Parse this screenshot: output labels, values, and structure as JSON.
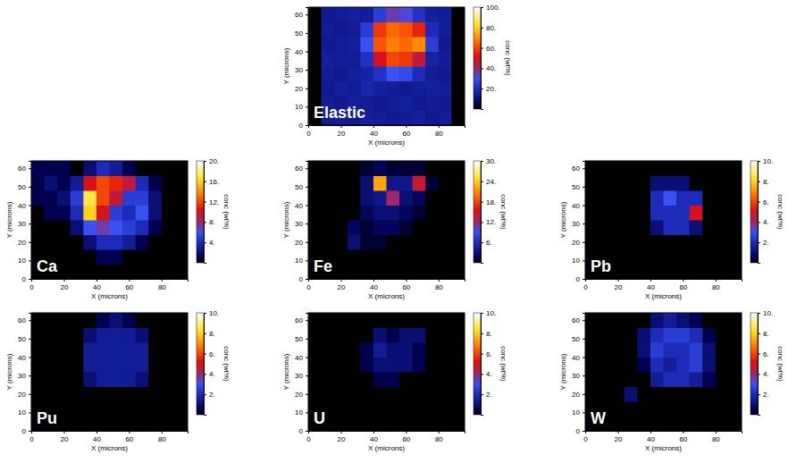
{
  "chart_data": [
    {
      "type": "heatmap",
      "title": "Elastic",
      "x_label": "X (microns)",
      "y_label": "Y (microns)",
      "x": [
        4,
        12,
        20,
        28,
        36,
        44,
        52,
        60,
        68,
        76,
        84,
        92
      ],
      "y": [
        4,
        12,
        20,
        28,
        36,
        44,
        52,
        60
      ],
      "z": [
        [
          0,
          14,
          15,
          14,
          16,
          15,
          14,
          15,
          16,
          14,
          15,
          0
        ],
        [
          0,
          15,
          14,
          16,
          15,
          14,
          15,
          16,
          14,
          15,
          14,
          0
        ],
        [
          0,
          14,
          16,
          15,
          18,
          16,
          15,
          14,
          15,
          16,
          15,
          0
        ],
        [
          0,
          15,
          14,
          16,
          17,
          22,
          30,
          28,
          20,
          15,
          14,
          0
        ],
        [
          0,
          16,
          15,
          15,
          22,
          50,
          60,
          58,
          45,
          17,
          15,
          0
        ],
        [
          0,
          14,
          15,
          16,
          30,
          62,
          68,
          65,
          70,
          25,
          14,
          0
        ],
        [
          0,
          15,
          14,
          15,
          25,
          58,
          65,
          62,
          55,
          20,
          15,
          0
        ],
        [
          0,
          14,
          15,
          16,
          15,
          25,
          35,
          32,
          22,
          16,
          15,
          0
        ]
      ],
      "xlim": [
        0,
        96
      ],
      "ylim": [
        0,
        64
      ],
      "xticks": [
        0,
        20,
        40,
        60,
        80
      ],
      "yticks": [
        0,
        10,
        20,
        30,
        40,
        50,
        60
      ],
      "colorbar": {
        "label": "conc (wt%)",
        "range": [
          0,
          100
        ],
        "ticks": [
          {
            "value": 20,
            "label": "20."
          },
          {
            "value": 40,
            "label": "40."
          },
          {
            "value": 60,
            "label": "60."
          },
          {
            "value": 80,
            "label": "80."
          },
          {
            "value": 100,
            "label": "100."
          }
        ]
      }
    },
    {
      "type": "heatmap",
      "title": "Ca",
      "x_label": "X (microns)",
      "y_label": "Y (microns)",
      "x": [
        4,
        12,
        20,
        28,
        36,
        44,
        52,
        60,
        68,
        76,
        84,
        92
      ],
      "y": [
        4,
        12,
        20,
        28,
        36,
        44,
        52,
        60
      ],
      "z": [
        [
          0,
          0,
          0,
          0,
          0,
          0,
          0,
          0,
          0,
          0,
          0,
          0
        ],
        [
          0,
          0,
          0,
          0,
          0,
          1,
          1,
          0,
          0,
          0,
          0,
          0
        ],
        [
          0,
          0,
          0,
          0,
          2,
          4,
          4,
          3,
          1,
          0,
          0,
          0
        ],
        [
          0,
          0,
          0,
          2,
          6,
          7,
          6,
          5,
          4,
          1,
          0,
          0
        ],
        [
          0,
          1,
          1,
          4,
          16,
          10,
          5,
          4,
          6,
          2,
          0,
          0
        ],
        [
          1,
          1,
          2,
          5,
          17,
          12,
          9,
          5,
          5,
          2,
          0,
          0
        ],
        [
          1,
          2,
          1,
          3,
          10,
          12,
          11,
          9,
          4,
          1,
          0,
          0
        ],
        [
          1,
          1,
          1,
          0,
          2,
          4,
          3,
          1,
          0,
          0,
          0,
          0
        ]
      ],
      "xlim": [
        0,
        96
      ],
      "ylim": [
        0,
        64
      ],
      "xticks": [
        0,
        20,
        40,
        60,
        80
      ],
      "yticks": [
        0,
        10,
        20,
        30,
        40,
        50,
        60
      ],
      "colorbar": {
        "label": "conc (wt%)",
        "range": [
          0,
          20
        ],
        "ticks": [
          {
            "value": 4,
            "label": "4."
          },
          {
            "value": 8,
            "label": "8."
          },
          {
            "value": 12,
            "label": "12."
          },
          {
            "value": 16,
            "label": "16."
          },
          {
            "value": 20,
            "label": "20."
          }
        ]
      }
    },
    {
      "type": "heatmap",
      "title": "Fe",
      "x_label": "X (microns)",
      "y_label": "Y (microns)",
      "x": [
        4,
        12,
        20,
        28,
        36,
        44,
        52,
        60,
        68,
        76,
        84,
        92
      ],
      "y": [
        4,
        12,
        20,
        28,
        36,
        44,
        52,
        60
      ],
      "z": [
        [
          0,
          0,
          0,
          0,
          0,
          0,
          0,
          0,
          0,
          0,
          0,
          0
        ],
        [
          0,
          0,
          0,
          0,
          0,
          0,
          0,
          0,
          0,
          0,
          0,
          0
        ],
        [
          0,
          0,
          0,
          3,
          1,
          1,
          0,
          0,
          0,
          0,
          0,
          0
        ],
        [
          0,
          0,
          0,
          2,
          1,
          2,
          2,
          1,
          0,
          0,
          0,
          0
        ],
        [
          0,
          0,
          0,
          0,
          2,
          3,
          3,
          2,
          1,
          0,
          0,
          0
        ],
        [
          0,
          0,
          0,
          0,
          3,
          4,
          12,
          3,
          2,
          0,
          0,
          0
        ],
        [
          0,
          0,
          0,
          0,
          3,
          22,
          4,
          4,
          14,
          1,
          0,
          0
        ],
        [
          0,
          0,
          0,
          0,
          1,
          2,
          1,
          1,
          1,
          0,
          0,
          0
        ]
      ],
      "xlim": [
        0,
        96
      ],
      "ylim": [
        0,
        64
      ],
      "xticks": [
        0,
        20,
        40,
        60,
        80
      ],
      "yticks": [
        0,
        10,
        20,
        30,
        40,
        50,
        60
      ],
      "colorbar": {
        "label": "conc (wt%)",
        "range": [
          0,
          30
        ],
        "ticks": [
          {
            "value": 6,
            "label": "6."
          },
          {
            "value": 12,
            "label": "12."
          },
          {
            "value": 18,
            "label": "18."
          },
          {
            "value": 24,
            "label": "24."
          },
          {
            "value": 30,
            "label": "30."
          }
        ]
      }
    },
    {
      "type": "heatmap",
      "title": "Pb",
      "x_label": "X (microns)",
      "y_label": "Y (microns)",
      "x": [
        4,
        12,
        20,
        28,
        36,
        44,
        52,
        60,
        68,
        76,
        84,
        92
      ],
      "y": [
        4,
        12,
        20,
        28,
        36,
        44,
        52,
        60
      ],
      "z": [
        [
          0,
          0,
          0,
          0,
          0,
          0,
          0,
          0,
          0,
          0,
          0,
          0
        ],
        [
          0,
          0,
          0,
          0,
          0,
          0,
          0,
          0,
          0,
          0,
          0,
          0
        ],
        [
          0,
          0,
          0,
          0,
          0,
          0,
          0,
          0,
          0,
          0,
          0,
          0
        ],
        [
          0,
          0,
          0,
          0,
          0,
          1,
          2,
          2,
          1,
          0,
          0,
          0
        ],
        [
          0,
          0,
          0,
          0,
          0,
          2,
          2,
          2,
          5,
          0,
          0,
          0
        ],
        [
          0,
          0,
          0,
          0,
          0,
          2,
          3,
          2,
          2,
          0,
          0,
          0
        ],
        [
          0,
          0,
          0,
          0,
          0,
          1,
          1,
          1,
          0,
          0,
          0,
          0
        ],
        [
          0,
          0,
          0,
          0,
          0,
          0,
          0,
          0,
          0,
          0,
          0,
          0
        ]
      ],
      "xlim": [
        0,
        96
      ],
      "ylim": [
        0,
        64
      ],
      "xticks": [
        0,
        20,
        40,
        60,
        80
      ],
      "yticks": [
        0,
        10,
        20,
        30,
        40,
        50,
        60
      ],
      "colorbar": {
        "label": "conc (wt%)",
        "range": [
          0,
          10
        ],
        "ticks": [
          {
            "value": 2,
            "label": "2."
          },
          {
            "value": 4,
            "label": "4."
          },
          {
            "value": 6,
            "label": "6."
          },
          {
            "value": 8,
            "label": "8."
          },
          {
            "value": 10,
            "label": "10."
          }
        ]
      }
    },
    {
      "type": "heatmap",
      "title": "Pu",
      "x_label": "X (microns)",
      "y_label": "Y (microns)",
      "x": [
        4,
        12,
        20,
        28,
        36,
        44,
        52,
        60,
        68,
        76,
        84,
        92
      ],
      "y": [
        4,
        12,
        20,
        28,
        36,
        44,
        52,
        60
      ],
      "z": [
        [
          0,
          0,
          0,
          0,
          0,
          0,
          0,
          0,
          0,
          0,
          0,
          0
        ],
        [
          0,
          0,
          0,
          0,
          0,
          0,
          0,
          0,
          0,
          0,
          0,
          0
        ],
        [
          0,
          0,
          0,
          0,
          0,
          0,
          0,
          0,
          0,
          0,
          0,
          0
        ],
        [
          0,
          0,
          0,
          0,
          1,
          1.5,
          1.5,
          1.5,
          1,
          0,
          0,
          0
        ],
        [
          0,
          0,
          0,
          0,
          1.5,
          1.5,
          1.5,
          1.5,
          1.5,
          0,
          0,
          0
        ],
        [
          0,
          0,
          0,
          0,
          1.5,
          1.5,
          1.5,
          1.5,
          1.5,
          0,
          0,
          0
        ],
        [
          0,
          0,
          0,
          0,
          1,
          1.5,
          1.5,
          1.5,
          1,
          0,
          0,
          0
        ],
        [
          0,
          0,
          0,
          0,
          0,
          0.5,
          1,
          0.5,
          0,
          0,
          0,
          0
        ]
      ],
      "xlim": [
        0,
        96
      ],
      "ylim": [
        0,
        64
      ],
      "xticks": [
        0,
        20,
        40,
        60,
        80
      ],
      "yticks": [
        0,
        10,
        20,
        30,
        40,
        50,
        60
      ],
      "colorbar": {
        "label": "conc (wt%)",
        "range": [
          0,
          10
        ],
        "ticks": [
          {
            "value": 2,
            "label": "2."
          },
          {
            "value": 4,
            "label": "4."
          },
          {
            "value": 6,
            "label": "6."
          },
          {
            "value": 8,
            "label": "8."
          },
          {
            "value": 10,
            "label": "10."
          }
        ]
      }
    },
    {
      "type": "heatmap",
      "title": "U",
      "x_label": "X (microns)",
      "y_label": "Y (microns)",
      "x": [
        4,
        12,
        20,
        28,
        36,
        44,
        52,
        60,
        68,
        76,
        84,
        92
      ],
      "y": [
        4,
        12,
        20,
        28,
        36,
        44,
        52,
        60
      ],
      "z": [
        [
          0,
          0,
          0,
          0,
          0,
          0,
          0,
          0,
          0,
          0,
          0,
          0
        ],
        [
          0,
          0,
          0,
          0,
          0,
          0,
          0,
          0,
          0,
          0,
          0,
          0
        ],
        [
          0,
          0,
          0,
          0,
          0,
          0,
          0,
          0,
          0,
          0,
          0,
          0
        ],
        [
          0,
          0,
          0,
          0,
          0,
          0.5,
          0.5,
          0,
          0,
          0,
          0,
          0
        ],
        [
          0,
          0,
          0,
          0,
          0.5,
          1,
          1,
          1,
          0.5,
          0,
          0,
          0
        ],
        [
          0,
          0,
          0,
          0,
          0.5,
          1.5,
          1,
          1,
          0.5,
          0,
          0,
          0
        ],
        [
          0,
          0,
          0,
          0,
          0,
          1,
          0.5,
          1,
          1,
          0,
          0,
          0
        ],
        [
          0,
          0,
          0,
          0,
          0,
          0,
          0,
          0,
          0,
          0,
          0,
          0
        ]
      ],
      "xlim": [
        0,
        96
      ],
      "ylim": [
        0,
        64
      ],
      "xticks": [
        0,
        20,
        40,
        60,
        80
      ],
      "yticks": [
        0,
        10,
        20,
        30,
        40,
        50,
        60
      ],
      "colorbar": {
        "label": "conc (wt%)",
        "range": [
          0,
          10
        ],
        "ticks": [
          {
            "value": 2,
            "label": "2."
          },
          {
            "value": 4,
            "label": "4."
          },
          {
            "value": 6,
            "label": "6."
          },
          {
            "value": 8,
            "label": "8."
          },
          {
            "value": 10,
            "label": "10."
          }
        ]
      }
    },
    {
      "type": "heatmap",
      "title": "W",
      "x_label": "X (microns)",
      "y_label": "Y (microns)",
      "x": [
        4,
        12,
        20,
        28,
        36,
        44,
        52,
        60,
        68,
        76,
        84,
        92
      ],
      "y": [
        4,
        12,
        20,
        28,
        36,
        44,
        52,
        60
      ],
      "z": [
        [
          0,
          0,
          0,
          0,
          0,
          0,
          0,
          0,
          0,
          0,
          0,
          0
        ],
        [
          0,
          0,
          0,
          0,
          0,
          0,
          0,
          0,
          0,
          0,
          0,
          0
        ],
        [
          0,
          0,
          0,
          1,
          0,
          0,
          0,
          0,
          0,
          0,
          0,
          0
        ],
        [
          0,
          0,
          0,
          0,
          0,
          1.5,
          2,
          2,
          1.5,
          0.5,
          0,
          0
        ],
        [
          0,
          0,
          0,
          0,
          0.5,
          2,
          1.5,
          2,
          2.5,
          1,
          0,
          0
        ],
        [
          0,
          0,
          0,
          0,
          1,
          2.5,
          2,
          2,
          2.5,
          1,
          0,
          0
        ],
        [
          0,
          0,
          0,
          0,
          1,
          2,
          2.5,
          2.5,
          2,
          0.5,
          0,
          0
        ],
        [
          0,
          0,
          0,
          0,
          0,
          1,
          1.5,
          1,
          0.5,
          0,
          0,
          0
        ]
      ],
      "xlim": [
        0,
        96
      ],
      "ylim": [
        0,
        64
      ],
      "xticks": [
        0,
        20,
        40,
        60,
        80
      ],
      "yticks": [
        0,
        10,
        20,
        30,
        40,
        50,
        60
      ],
      "colorbar": {
        "label": "conc (wt%)",
        "range": [
          0,
          10
        ],
        "ticks": [
          {
            "value": 2,
            "label": "2."
          },
          {
            "value": 4,
            "label": "4."
          },
          {
            "value": 6,
            "label": "6."
          },
          {
            "value": 8,
            "label": "8."
          },
          {
            "value": 10,
            "label": "10."
          }
        ]
      }
    }
  ]
}
